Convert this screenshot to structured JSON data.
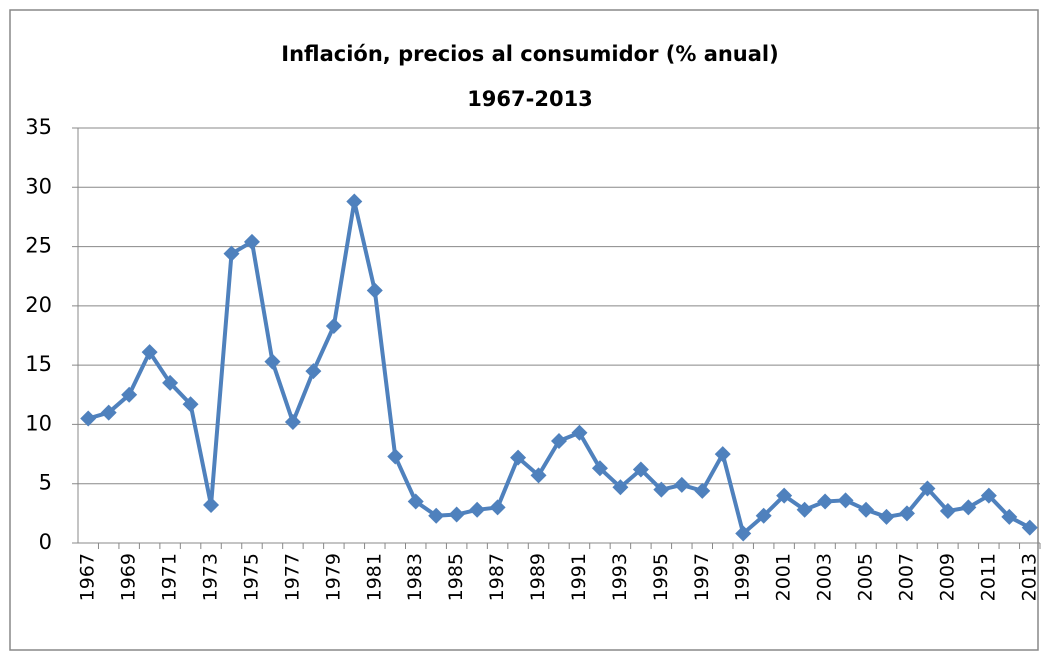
{
  "chart_data": {
    "type": "line",
    "title": "Inflación, precios al consumidor (% anual)",
    "subtitle": "1967-2013",
    "categories": [
      "1967",
      null,
      "1969",
      null,
      "1971",
      null,
      "1973",
      null,
      "1975",
      null,
      "1977",
      null,
      "1979",
      null,
      "1981",
      null,
      "1983",
      null,
      "1985",
      null,
      "1987",
      null,
      "1989",
      null,
      "1991",
      null,
      "1993",
      null,
      "1995",
      null,
      "1997",
      null,
      "1999",
      null,
      "2001",
      null,
      "2003",
      null,
      "2005",
      null,
      "2007",
      null,
      "2009",
      null,
      "2011",
      null,
      "2013"
    ],
    "series": [
      {
        "name": "Inflación",
        "color": "#4f81bd",
        "values": [
          10.5,
          11.0,
          12.5,
          16.1,
          13.5,
          11.7,
          3.2,
          24.4,
          25.4,
          15.3,
          10.2,
          14.5,
          18.3,
          28.8,
          21.3,
          7.3,
          3.5,
          2.3,
          2.4,
          2.8,
          3.0,
          7.2,
          5.7,
          8.6,
          9.3,
          6.3,
          4.7,
          6.2,
          4.5,
          4.9,
          4.4,
          7.5,
          0.8,
          2.3,
          4.0,
          2.8,
          3.5,
          3.6,
          2.8,
          2.2,
          2.5,
          4.6,
          2.7,
          3.0,
          4.0,
          2.2,
          1.3
        ]
      }
    ],
    "ylim": [
      0,
      35
    ],
    "yticks": [
      0,
      5,
      10,
      15,
      20,
      25,
      30,
      35
    ],
    "grid": true,
    "legend": false
  }
}
